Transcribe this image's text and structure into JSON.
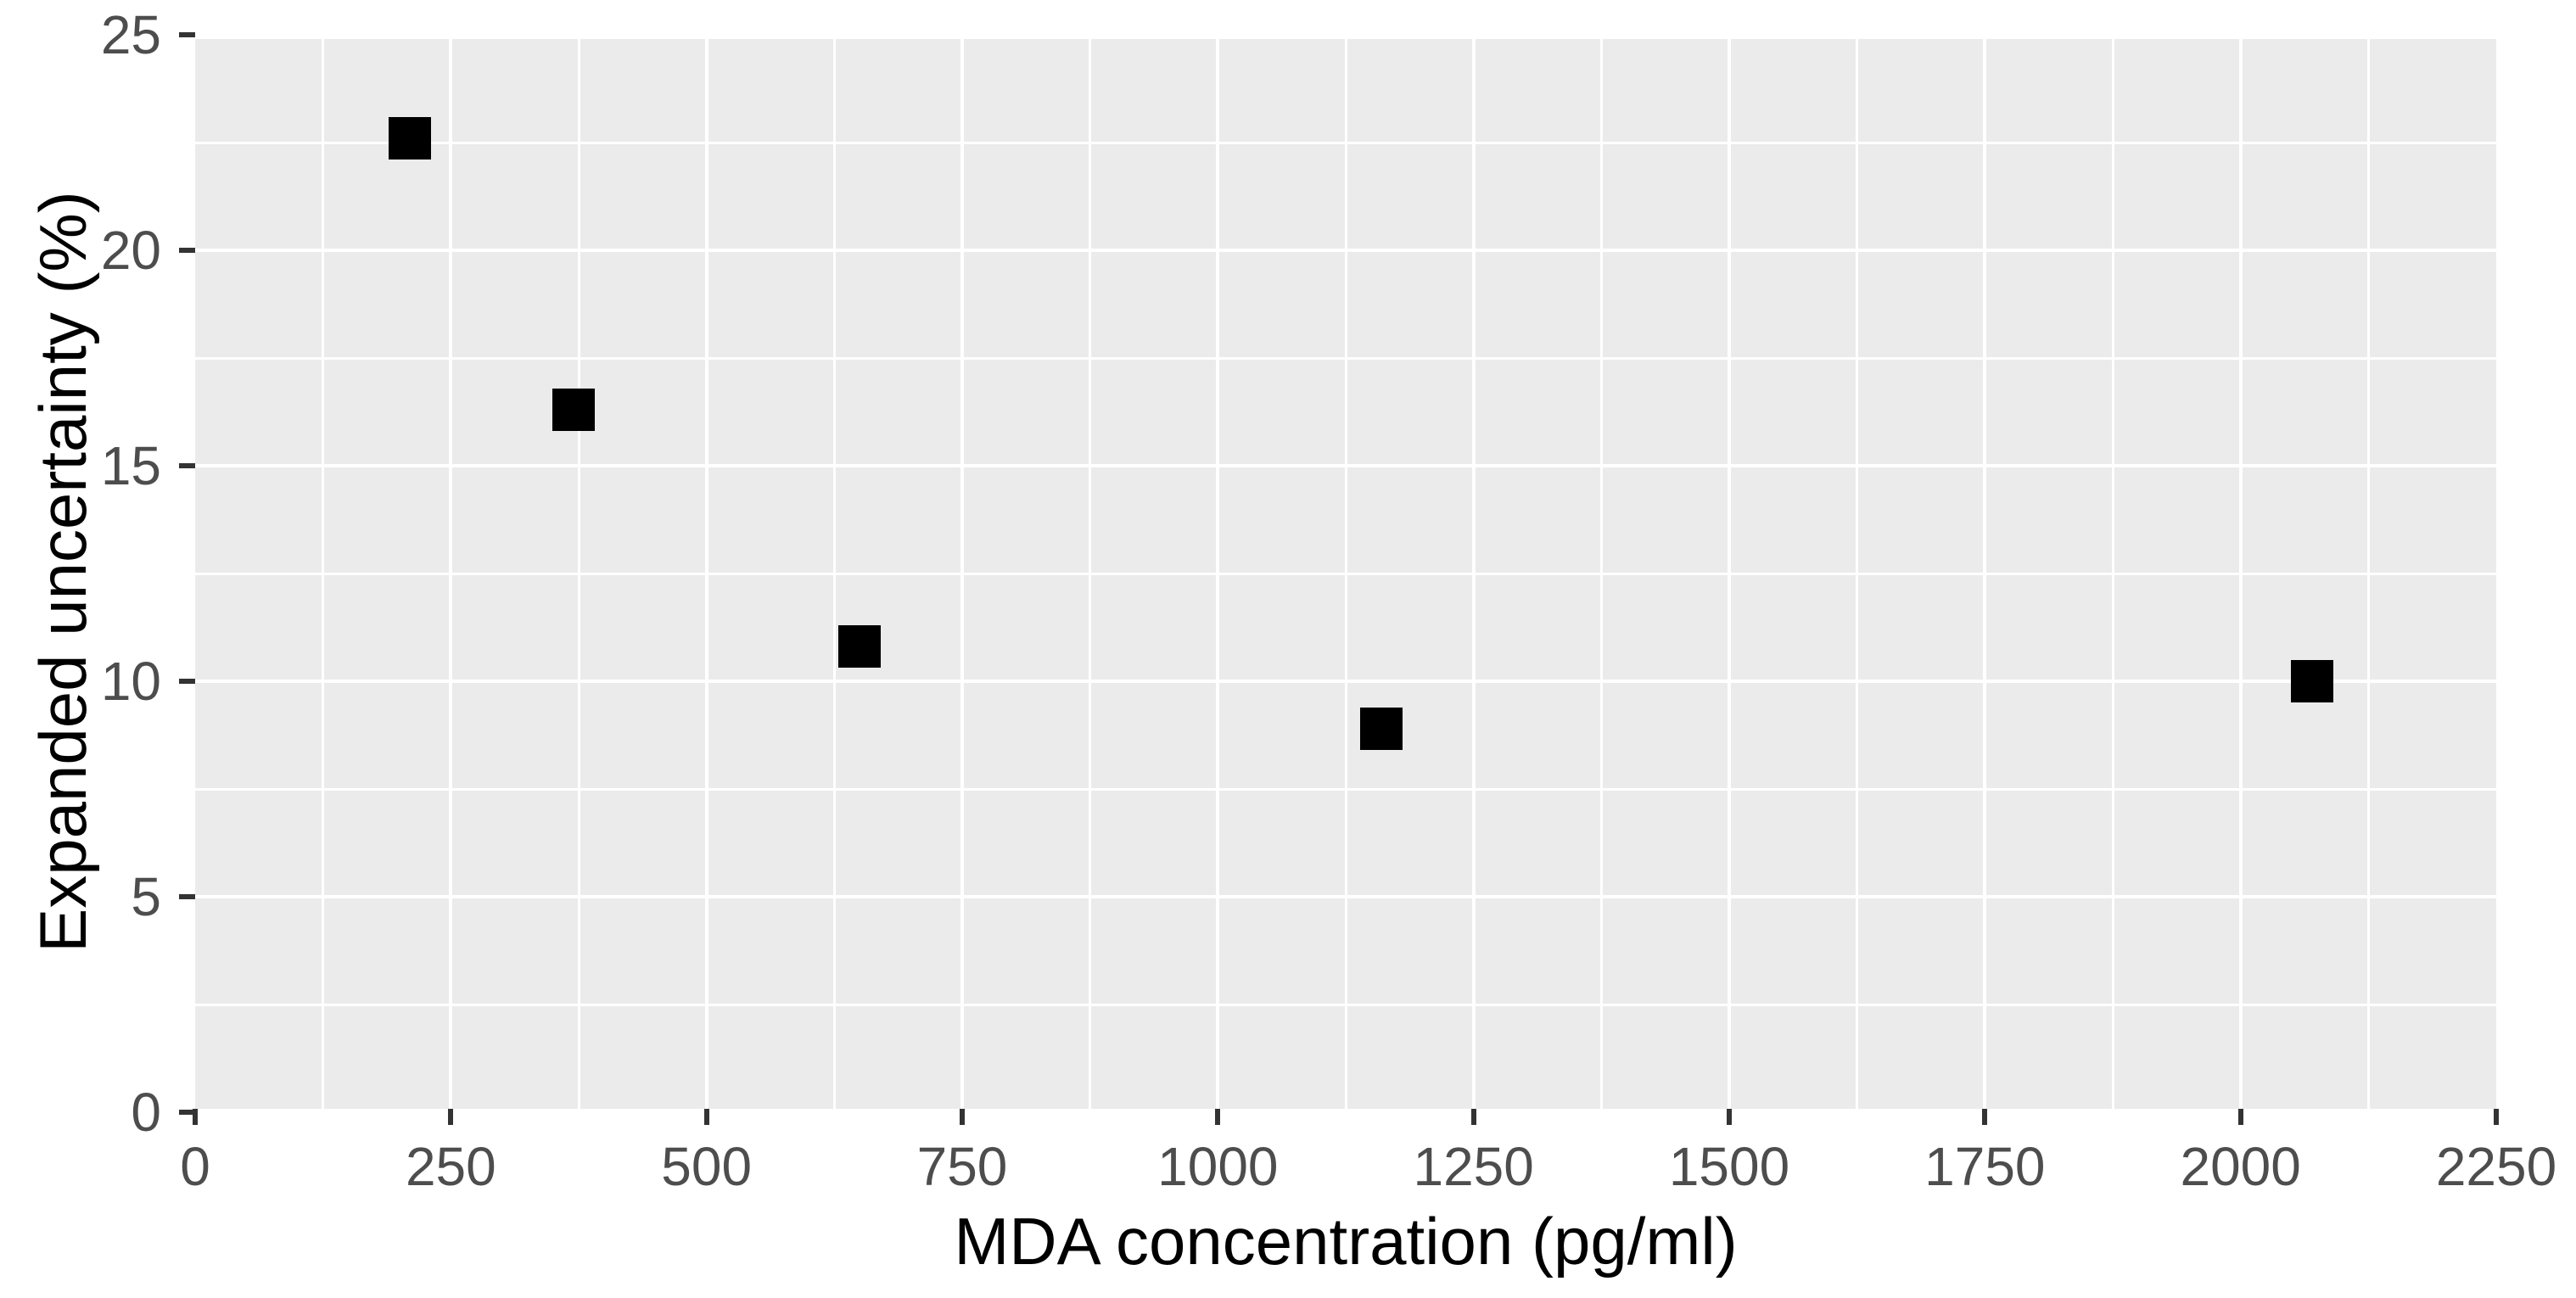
{
  "chart_data": {
    "type": "scatter",
    "title": "",
    "xlabel": "MDA concentration (pg/ml)",
    "ylabel": "Expanded uncertainty (%)",
    "xlim": [
      0,
      2250
    ],
    "ylim": [
      0,
      25
    ],
    "x_tick_labels": [
      "0",
      "250",
      "500",
      "750",
      "1000",
      "1250",
      "1500",
      "1750",
      "2000",
      "2250"
    ],
    "y_tick_labels": [
      "0",
      "5",
      "10",
      "15",
      "20",
      "25"
    ],
    "x_minor_gridlines": [
      125,
      375,
      625,
      875,
      1125,
      1375,
      1625,
      1875,
      2125
    ],
    "x_major_gridlines": [
      250,
      500,
      750,
      1000,
      1250,
      1500,
      1750,
      2000
    ],
    "y_minor_gridlines": [
      2.5,
      7.5,
      12.5,
      17.5,
      22.5
    ],
    "y_major_gridlines": [
      5,
      10,
      15,
      20
    ],
    "grid": "on",
    "legend": "none",
    "marker": "filled-square",
    "points": [
      {
        "x": 210,
        "y": 22.6
      },
      {
        "x": 370,
        "y": 16.3
      },
      {
        "x": 650,
        "y": 10.8
      },
      {
        "x": 1160,
        "y": 8.9
      },
      {
        "x": 2070,
        "y": 10.0
      }
    ],
    "colors": {
      "panel_background": "#EBEBEB",
      "gridline": "#FFFFFF",
      "marker": "#000000",
      "tick_label": "#4D4D4D",
      "axis_title": "#000000",
      "tick_mark": "#333333"
    }
  }
}
